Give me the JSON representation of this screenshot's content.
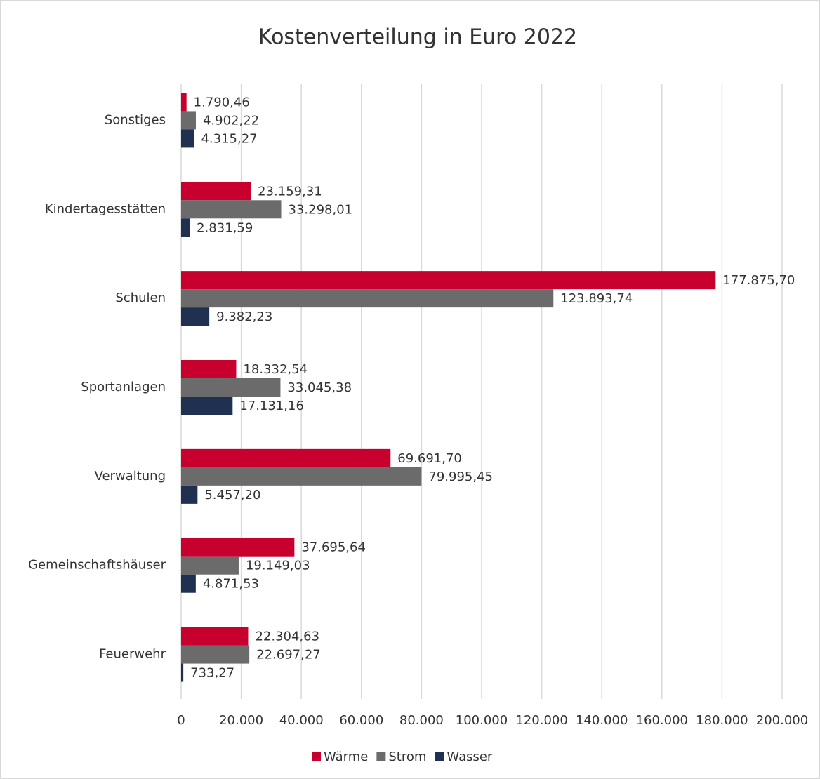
{
  "chart_data": {
    "type": "bar",
    "orientation": "horizontal",
    "title": "Kostenverteilung in Euro 2022",
    "categories": [
      "Sonstiges",
      "Kindertagesstätten",
      "Schulen",
      "Sportanlagen",
      "Verwaltung",
      "Gemeinschaftshäuser",
      "Feuerwehr"
    ],
    "series": [
      {
        "name": "Wärme",
        "color": "#c8002d",
        "values": [
          1790.46,
          23159.31,
          177875.7,
          18332.54,
          69691.7,
          37695.64,
          22304.63
        ],
        "value_labels": [
          "1.790,46",
          "23.159,31",
          "177.875,70",
          "18.332,54",
          "69.691,70",
          "37.695,64",
          "22.304,63"
        ]
      },
      {
        "name": "Strom",
        "color": "#6b6b6b",
        "values": [
          4902.22,
          33298.01,
          123893.74,
          33045.38,
          79995.45,
          19149.03,
          22697.27
        ],
        "value_labels": [
          "4.902,22",
          "33.298,01",
          "123.893,74",
          "33.045,38",
          "79.995,45",
          "19.149,03",
          "22.697,27"
        ]
      },
      {
        "name": "Wasser",
        "color": "#1f3050",
        "values": [
          4315.27,
          2831.59,
          9382.23,
          17131.16,
          5457.2,
          4871.53,
          733.27
        ],
        "value_labels": [
          "4.315,27",
          "2.831,59",
          "9.382,23",
          "17.131,16",
          "5.457,20",
          "4.871,53",
          "733,27"
        ]
      }
    ],
    "xlim": [
      0,
      200000
    ],
    "xticks": [
      0,
      {
        "value": 20000,
        "label": "20.000"
      },
      {
        "value": 40000,
        "label": "40.000"
      },
      {
        "value": 60000,
        "label": "60.000"
      },
      {
        "value": 80000,
        "label": "80.000"
      },
      {
        "value": 100000,
        "label": "100.000"
      },
      {
        "value": 120000,
        "label": "120.000"
      },
      {
        "value": 140000,
        "label": "140.000"
      },
      {
        "value": 160000,
        "label": "160.000"
      },
      {
        "value": 180000,
        "label": "180.000"
      },
      {
        "value": 200000,
        "label": "200.000"
      }
    ],
    "grid": true,
    "legend": "bottom"
  }
}
